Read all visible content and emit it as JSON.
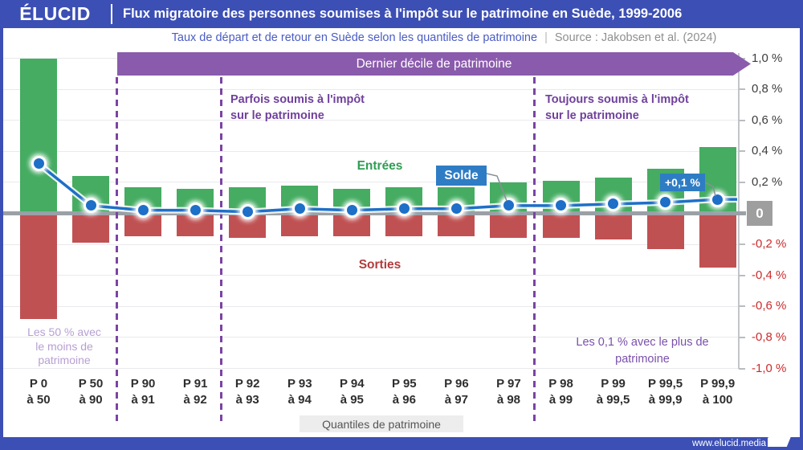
{
  "header": {
    "logo": "ÉLUCID",
    "title": "Flux migratoire des personnes soumises à l'impôt sur le patrimoine en Suède, 1999-2006",
    "subtitle": "Taux de départ et de retour en Suède selon les quantiles de patrimoine",
    "divider": "|",
    "source": "Source : Jakobsen et al. (2024)"
  },
  "banner": {
    "label": "Dernier décile de patrimoine"
  },
  "annotations": {
    "sometimes": {
      "line1": "Parfois soumis à l'impôt",
      "line2": "sur le patrimoine"
    },
    "always": {
      "line1": "Toujours soumis à l'impôt",
      "line2": "sur le patrimoine"
    },
    "bottom50": {
      "line1": "Les 50 % avec",
      "line2": "le moins de",
      "line3": "patrimoine"
    },
    "top01": {
      "line1": "Les 0,1 % avec le plus de",
      "line2": "patrimoine"
    }
  },
  "chart_data": {
    "type": "bar+line",
    "title": "Flux migratoire des personnes soumises à l'impôt sur le patrimoine en Suède, 1999-2006",
    "subtitle": "Taux de départ et de retour en Suède selon les quantiles de patrimoine",
    "source": "Jakobsen et al. (2024)",
    "xlabel": "Quantiles de patrimoine",
    "ylabel": "",
    "ylim": [
      -1.0,
      1.0
    ],
    "grid": true,
    "categories": [
      {
        "l1": "P 0",
        "l2": "à 50"
      },
      {
        "l1": "P 50",
        "l2": "à 90"
      },
      {
        "l1": "P 90",
        "l2": "à 91"
      },
      {
        "l1": "P 91",
        "l2": "à 92"
      },
      {
        "l1": "P 92",
        "l2": "à 93"
      },
      {
        "l1": "P 93",
        "l2": "à 94"
      },
      {
        "l1": "P 94",
        "l2": "à 95"
      },
      {
        "l1": "P 95",
        "l2": "à 96"
      },
      {
        "l1": "P 96",
        "l2": "à 97"
      },
      {
        "l1": "P 97",
        "l2": "à 98"
      },
      {
        "l1": "P 98",
        "l2": "à 99"
      },
      {
        "l1": "P 99",
        "l2": "à 99,5"
      },
      {
        "l1": "P 99,5",
        "l2": "à 99,9"
      },
      {
        "l1": "P 99,9",
        "l2": "à 100"
      }
    ],
    "series": [
      {
        "name": "Entrées",
        "type": "bar",
        "color": "#45ac62",
        "values": [
          1.0,
          0.24,
          0.17,
          0.16,
          0.17,
          0.18,
          0.16,
          0.17,
          0.17,
          0.2,
          0.21,
          0.23,
          0.29,
          0.43
        ]
      },
      {
        "name": "Sorties",
        "type": "bar",
        "color": "#c05153",
        "values": [
          -0.68,
          -0.19,
          -0.15,
          -0.15,
          -0.16,
          -0.15,
          -0.15,
          -0.15,
          -0.15,
          -0.16,
          -0.16,
          -0.17,
          -0.23,
          -0.35
        ]
      },
      {
        "name": "Solde",
        "type": "line",
        "color": "#1e6fc8",
        "values": [
          0.32,
          0.05,
          0.02,
          0.02,
          0.01,
          0.03,
          0.02,
          0.03,
          0.03,
          0.05,
          0.05,
          0.06,
          0.07,
          0.09
        ]
      }
    ],
    "yticks": [
      {
        "v": 1.0,
        "label": "1,0 %"
      },
      {
        "v": 0.8,
        "label": "0,8 %"
      },
      {
        "v": 0.6,
        "label": "0,6 %"
      },
      {
        "v": 0.4,
        "label": "0,4 %"
      },
      {
        "v": 0.2,
        "label": "0,2 %"
      },
      {
        "v": 0,
        "label": "0"
      },
      {
        "v": -0.2,
        "label": "-0,2 %"
      },
      {
        "v": -0.4,
        "label": "-0,4 %"
      },
      {
        "v": -0.6,
        "label": "-0,6 %"
      },
      {
        "v": -0.8,
        "label": "-0,8 %"
      },
      {
        "v": -1.0,
        "label": "-1,0 %"
      }
    ],
    "zero_label": "0",
    "separators_after_index": [
      1,
      3,
      9
    ],
    "solde_callout": "Solde",
    "point_label": "+0,1 %",
    "point_label_index": 13
  },
  "footer": {
    "url": "www.elucid.media"
  }
}
